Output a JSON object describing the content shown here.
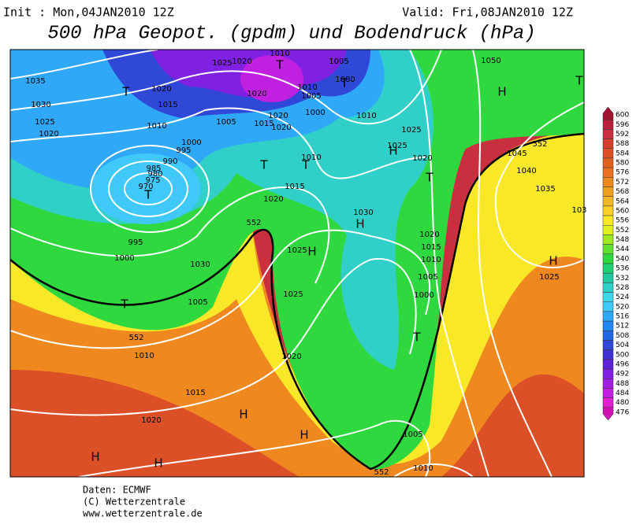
{
  "header": {
    "init": "Init : Mon,04JAN2010 12Z",
    "valid": "Valid: Fri,08JAN2010 12Z",
    "title": "500 hPa Geopot. (gpdm) und Bodendruck (hPa)"
  },
  "legend": {
    "values": [
      600,
      596,
      592,
      588,
      584,
      580,
      576,
      572,
      568,
      564,
      560,
      556,
      552,
      548,
      544,
      540,
      536,
      532,
      528,
      524,
      520,
      516,
      512,
      508,
      504,
      500,
      496,
      492,
      488,
      484,
      480,
      476
    ],
    "colors": [
      "#9e1230",
      "#b8203c",
      "#c83040",
      "#d44030",
      "#dc5028",
      "#e06020",
      "#e87020",
      "#f08820",
      "#f0a020",
      "#f0b828",
      "#f8d028",
      "#f8e828",
      "#e0f020",
      "#a0e820",
      "#60e030",
      "#30d840",
      "#20d070",
      "#20c8a0",
      "#30d0c8",
      "#40d8e8",
      "#40c8f8",
      "#30a8f8",
      "#2088f0",
      "#2068e0",
      "#3048d8",
      "#4030d0",
      "#6020d8",
      "#8020e0",
      "#a020e0",
      "#c020e0",
      "#e020d0",
      "#d010b0"
    ]
  },
  "map": {
    "labels": [
      "1035",
      "1030",
      "1025",
      "1020",
      "1025",
      "1020",
      "1010",
      "1005",
      "1000",
      "1020",
      "1015",
      "1010",
      "1020",
      "1005",
      "1010",
      "1000",
      "1010",
      "1005",
      "1020",
      "1015",
      "1020",
      "1000",
      "995",
      "990",
      "985",
      "980",
      "975",
      "970",
      "1050",
      "1025",
      "1025",
      "1020",
      "1045",
      "1040",
      "1035",
      "103",
      "1010",
      "1015",
      "1020",
      "1030",
      "1020",
      "1015",
      "1010",
      "1005",
      "1000",
      "1025",
      "1025",
      "995",
      "1000",
      "1030",
      "1005",
      "1025",
      "1010",
      "1015",
      "1020",
      "1020",
      "1005",
      "1010",
      "552",
      "552",
      "552",
      "552",
      "T",
      "T",
      "T",
      "T",
      "T",
      "T",
      "T",
      "T",
      "T",
      "T",
      "H",
      "H",
      "H",
      "H",
      "H",
      "H",
      "H",
      "H",
      "H"
    ]
  },
  "footer": {
    "source": "Daten: ECMWF",
    "copyright": "(C) Wetterzentrale",
    "url": "www.wetterzentrale.de"
  }
}
